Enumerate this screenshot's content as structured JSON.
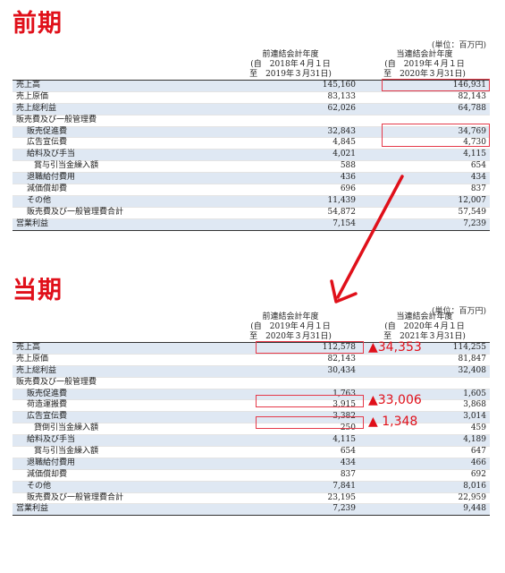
{
  "previous": {
    "heading": "前期",
    "unit": "(単位：百万円)",
    "col1": {
      "l1": "前連結会計年度",
      "l2": "(自　2018年４月１日",
      "l3": "至　2019年３月31日)"
    },
    "col2": {
      "l1": "当連結会計年度",
      "l2": "(自　2019年４月１日",
      "l3": "至　2020年３月31日)"
    },
    "rows": [
      {
        "label": "売上高",
        "v1": "145,160",
        "v2": "146,931"
      },
      {
        "label": "売上原価",
        "v1": "83,133",
        "v2": "82,143"
      },
      {
        "label": "売上総利益",
        "v1": "62,026",
        "v2": "64,788"
      },
      {
        "label": "販売費及び一般管理費",
        "v1": "",
        "v2": ""
      },
      {
        "label": "販売促進費",
        "v1": "32,843",
        "v2": "34,769"
      },
      {
        "label": "広告宣伝費",
        "v1": "4,845",
        "v2": "4,730"
      },
      {
        "label": "給料及び手当",
        "v1": "4,021",
        "v2": "4,115"
      },
      {
        "label": "賞与引当金繰入額",
        "v1": "588",
        "v2": "654"
      },
      {
        "label": "退職給付費用",
        "v1": "436",
        "v2": "434"
      },
      {
        "label": "減価償却費",
        "v1": "696",
        "v2": "837"
      },
      {
        "label": "その他",
        "v1": "11,439",
        "v2": "12,007"
      },
      {
        "label": "販売費及び一般管理費合計",
        "v1": "54,872",
        "v2": "57,549"
      },
      {
        "label": "営業利益",
        "v1": "7,154",
        "v2": "7,239"
      }
    ]
  },
  "current": {
    "heading": "当期",
    "unit": "(単位：百万円)",
    "col1": {
      "l1": "前連結会計年度",
      "l2": "(自　2019年４月１日",
      "l3": "至　2020年３月31日)"
    },
    "col2": {
      "l1": "当連結会計年度",
      "l2": "(自　2020年４月１日",
      "l3": "至　2021年３月31日)"
    },
    "rows": [
      {
        "label": "売上高",
        "v1": "112,578",
        "v2": "114,255"
      },
      {
        "label": "売上原価",
        "v1": "82,143",
        "v2": "81,847"
      },
      {
        "label": "売上総利益",
        "v1": "30,434",
        "v2": "32,408"
      },
      {
        "label": "販売費及び一般管理費",
        "v1": "",
        "v2": ""
      },
      {
        "label": "販売促進費",
        "v1": "1,763",
        "v2": "1,605"
      },
      {
        "label": "荷造運搬費",
        "v1": "3,915",
        "v2": "3,868"
      },
      {
        "label": "広告宣伝費",
        "v1": "3,382",
        "v2": "3,014"
      },
      {
        "label": "貸倒引当金繰入額",
        "v1": "250",
        "v2": "459"
      },
      {
        "label": "給料及び手当",
        "v1": "4,115",
        "v2": "4,189"
      },
      {
        "label": "賞与引当金繰入額",
        "v1": "654",
        "v2": "647"
      },
      {
        "label": "退職給付費用",
        "v1": "434",
        "v2": "466"
      },
      {
        "label": "減価償却費",
        "v1": "837",
        "v2": "692"
      },
      {
        "label": "その他",
        "v1": "7,841",
        "v2": "8,016"
      },
      {
        "label": "販売費及び一般管理費合計",
        "v1": "23,195",
        "v2": "22,959"
      },
      {
        "label": "営業利益",
        "v1": "7,239",
        "v2": "9,448"
      }
    ],
    "deltas": {
      "sales": "▲34,353",
      "promo": "▲33,006",
      "ad": "▲ 1,348"
    }
  },
  "colors": {
    "accent": "#e0101a",
    "shade": "#dfe8f3",
    "box": "#e53a4a"
  }
}
